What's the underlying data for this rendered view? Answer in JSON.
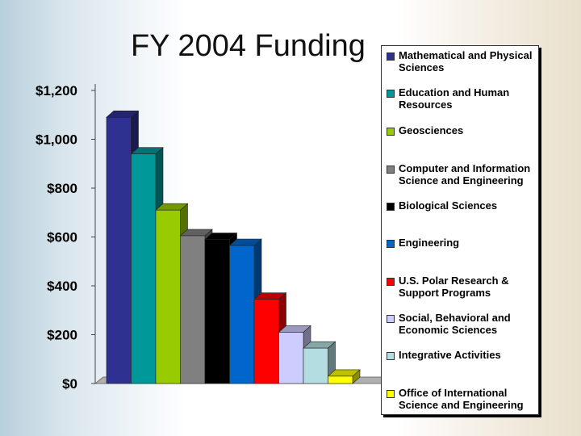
{
  "slide": {
    "title": "FY 2004 Funding"
  },
  "chart_data": {
    "type": "bar",
    "title": "FY 2004 Funding",
    "xlabel": "",
    "ylabel": "",
    "ylim": [
      0,
      1200
    ],
    "yticks": [
      "$0",
      "$200",
      "$400",
      "$600",
      "$800",
      "$1,000",
      "$1,200"
    ],
    "grid": false,
    "legend_position": "right",
    "series": [
      {
        "name": "Mathematical and Physical Sciences",
        "value": 1090,
        "color": "#2e3192"
      },
      {
        "name": "Education and Human Resources",
        "value": 940,
        "color": "#009999"
      },
      {
        "name": "Geosciences",
        "value": 710,
        "color": "#99cc00"
      },
      {
        "name": "Computer and Information Science and Engineering",
        "value": 605,
        "color": "#808080"
      },
      {
        "name": "Biological Sciences",
        "value": 590,
        "color": "#000000"
      },
      {
        "name": "Engineering",
        "value": 565,
        "color": "#0066cc"
      },
      {
        "name": "U.S. Polar Research & Support Programs",
        "value": 345,
        "color": "#ff0000"
      },
      {
        "name": "Social, Behavioral and Economic Sciences",
        "value": 210,
        "color": "#ccccff"
      },
      {
        "name": "Integrative Activities",
        "value": 145,
        "color": "#b3dde0"
      },
      {
        "name": "Office of International Science and Engineering",
        "value": 30,
        "color": "#ffff00"
      }
    ]
  }
}
